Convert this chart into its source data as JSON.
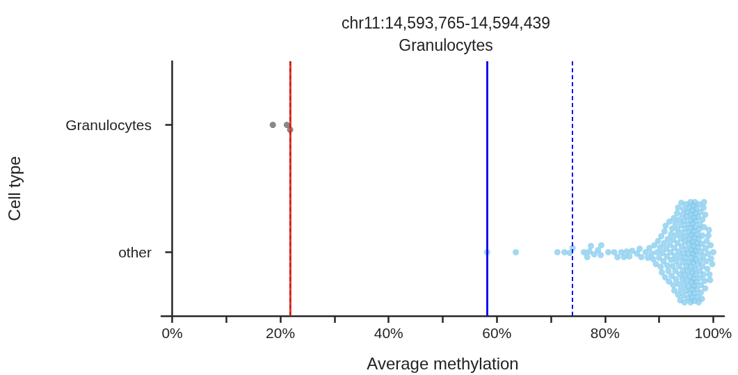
{
  "chart_data": {
    "type": "scatter",
    "title": "chr11:14,593,765-14,594,439",
    "subtitle": "Granulocytes",
    "xlabel": "Average methylation",
    "ylabel": "Cell type",
    "orientation": "horizontal",
    "categories": [
      "Granulocytes",
      "other"
    ],
    "series": [
      {
        "color": "#555555",
        "x": [
          "Granulocytes",
          "Granulocytes",
          "Granulocytes"
        ],
        "values": [
          18.6,
          21.2,
          21.8
        ]
      },
      {
        "color": "#7cc8ec",
        "x": [
          "other",
          "other",
          "other",
          "other",
          "other",
          "other",
          "other",
          "other",
          "other",
          "other",
          "other",
          "other",
          "other",
          "other",
          "other",
          "other",
          "other",
          "other",
          "other",
          "other",
          "other",
          "other",
          "other",
          "other",
          "other",
          "other",
          "other",
          "other",
          "other",
          "other",
          "other",
          "other",
          "other",
          "other",
          "other",
          "other",
          "other",
          "other",
          "other",
          "other",
          "other",
          "other",
          "other",
          "other",
          "other",
          "other",
          "other",
          "other",
          "other",
          "other",
          "other",
          "other",
          "other",
          "other",
          "other",
          "other",
          "other",
          "other",
          "other",
          "other",
          "other",
          "other",
          "other",
          "other",
          "other",
          "other",
          "other",
          "other",
          "other",
          "other",
          "other",
          "other",
          "other",
          "other",
          "other",
          "other",
          "other",
          "other",
          "other",
          "other",
          "other",
          "other",
          "other",
          "other",
          "other",
          "other",
          "other",
          "other",
          "other",
          "other",
          "other",
          "other",
          "other",
          "other",
          "other",
          "other",
          "other",
          "other",
          "other",
          "other",
          "other",
          "other",
          "other",
          "other",
          "other",
          "other",
          "other",
          "other",
          "other",
          "other",
          "other",
          "other",
          "other",
          "other",
          "other",
          "other",
          "other",
          "other",
          "other",
          "other",
          "other",
          "other",
          "other",
          "other",
          "other",
          "other",
          "other",
          "other",
          "other",
          "other",
          "other",
          "other",
          "other",
          "other",
          "other",
          "other",
          "other",
          "other",
          "other",
          "other",
          "other",
          "other",
          "other",
          "other",
          "other",
          "other",
          "other",
          "other",
          "other",
          "other",
          "other",
          "other",
          "other",
          "other",
          "other",
          "other",
          "other",
          "other",
          "other",
          "other",
          "other",
          "other",
          "other",
          "other",
          "other",
          "other",
          "other",
          "other",
          "other",
          "other",
          "other",
          "other",
          "other",
          "other",
          "other",
          "other",
          "other",
          "other",
          "other",
          "other",
          "other",
          "other",
          "other",
          "other",
          "other",
          "other",
          "other",
          "other",
          "other",
          "other",
          "other",
          "other",
          "other",
          "other",
          "other",
          "other",
          "other",
          "other",
          "other",
          "other",
          "other",
          "other",
          "other",
          "other",
          "other"
        ],
        "values": [
          58.2,
          63.5,
          71.2,
          72.5,
          73.5,
          74.0,
          76.1,
          76.7,
          77.1,
          77.4,
          78.0,
          78.7,
          79.2,
          79.3,
          80.6,
          81.7,
          82.3,
          83.0,
          83.5,
          84.0,
          84.5,
          85.0,
          85.9,
          86.4,
          86.7,
          87.5,
          87.9,
          88.2,
          88.6,
          88.9,
          89.1,
          89.4,
          89.6,
          89.8,
          90.0,
          90.2,
          90.3,
          90.5,
          90.6,
          90.8,
          90.9,
          91.0,
          91.1,
          91.2,
          91.4,
          91.5,
          91.6,
          91.7,
          91.8,
          91.9,
          92.0,
          92.1,
          92.2,
          92.3,
          92.4,
          92.5,
          92.6,
          92.7,
          92.8,
          92.9,
          93.0,
          93.0,
          93.1,
          93.2,
          93.3,
          93.4,
          93.5,
          93.5,
          93.6,
          93.7,
          93.8,
          93.9,
          93.9,
          94.0,
          94.1,
          94.1,
          94.2,
          94.3,
          94.3,
          94.4,
          94.5,
          94.5,
          94.6,
          94.7,
          94.7,
          94.8,
          94.9,
          94.9,
          95.0,
          95.0,
          95.1,
          95.2,
          95.2,
          95.3,
          95.3,
          95.4,
          95.5,
          95.5,
          95.6,
          95.6,
          95.7,
          95.8,
          95.8,
          95.9,
          95.9,
          96.0,
          96.0,
          96.1,
          96.1,
          96.2,
          96.2,
          96.3,
          96.3,
          96.4,
          96.4,
          96.5,
          96.5,
          96.6,
          96.6,
          96.7,
          96.7,
          96.8,
          96.9,
          96.9,
          97.0,
          97.0,
          97.1,
          97.1,
          97.2,
          97.2,
          97.3,
          97.4,
          97.4,
          97.5,
          97.5,
          97.6,
          97.7,
          97.7,
          97.8,
          97.9,
          97.9,
          98.0,
          98.0,
          98.1,
          98.2,
          98.2,
          98.3,
          98.4,
          98.5,
          98.5,
          98.6,
          98.7,
          98.8,
          98.9,
          99.0,
          99.1,
          99.2,
          99.3,
          99.4,
          99.5,
          99.6,
          99.8,
          100.0,
          93.4,
          94.0,
          94.4,
          94.8,
          95.1,
          95.4,
          95.7,
          96.0,
          96.3,
          96.5,
          96.8,
          97.0,
          97.3,
          97.6,
          98.0,
          92.2,
          92.6,
          93.2,
          93.7,
          94.2,
          94.6,
          95.0,
          95.5,
          95.9,
          96.2,
          96.6,
          97.1,
          97.5,
          98.3,
          90.4,
          91.3,
          92.8,
          93.6,
          94.5,
          95.3,
          96.1,
          96.4,
          96.7,
          96.2,
          96.5,
          95.8,
          96.0
        ]
      }
    ],
    "xlim": [
      -2,
      102
    ],
    "xticks": [
      {
        "value": 0,
        "label": "0%"
      },
      {
        "value": 10,
        "label": null
      },
      {
        "value": 20,
        "label": "20%"
      },
      {
        "value": 30,
        "label": null
      },
      {
        "value": 40,
        "label": "40%"
      },
      {
        "value": 50,
        "label": null
      },
      {
        "value": 60,
        "label": "60%"
      },
      {
        "value": 70,
        "label": null
      },
      {
        "value": 80,
        "label": "80%"
      },
      {
        "value": 90,
        "label": null
      },
      {
        "value": 100,
        "label": "100%"
      }
    ],
    "ref_lines": [
      {
        "axis": "x",
        "value": 21.8,
        "color": "#e8392b",
        "line_style": "solid"
      },
      {
        "axis": "x",
        "value": 21.8,
        "color": "#c0201a",
        "line_style": "dashed"
      },
      {
        "axis": "x",
        "value": 58.2,
        "color": "#1010ee",
        "line_style": "solid"
      },
      {
        "axis": "x",
        "value": 74.0,
        "color": "#1010ee",
        "line_style": "dashed"
      }
    ],
    "marker": "circle",
    "grid": false
  }
}
